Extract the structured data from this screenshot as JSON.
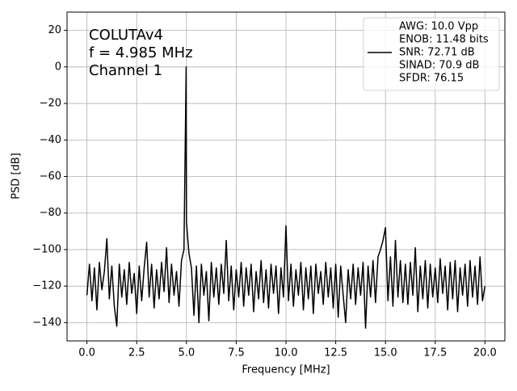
{
  "chart_data": {
    "type": "line",
    "xlabel": "Frequency [MHz]",
    "ylabel": "PSD [dB]",
    "annotation": [
      "COLUTAv4",
      "f = 4.985 MHz",
      "Channel 1"
    ],
    "xlim": [
      -1,
      21
    ],
    "ylim": [
      -150,
      30
    ],
    "xticks": [
      {
        "value": 0,
        "label": "0.0"
      },
      {
        "value": 2.5,
        "label": "2.5"
      },
      {
        "value": 5,
        "label": "5.0"
      },
      {
        "value": 7.5,
        "label": "7.5"
      },
      {
        "value": 10,
        "label": "10.0"
      },
      {
        "value": 12.5,
        "label": "12.5"
      },
      {
        "value": 15,
        "label": "15.0"
      },
      {
        "value": 17.5,
        "label": "17.5"
      },
      {
        "value": 20,
        "label": "20.0"
      }
    ],
    "yticks": [
      {
        "value": -140,
        "label": "−140"
      },
      {
        "value": -120,
        "label": "−120"
      },
      {
        "value": -100,
        "label": "−100"
      },
      {
        "value": -80,
        "label": "−80"
      },
      {
        "value": -60,
        "label": "−60"
      },
      {
        "value": -40,
        "label": "−40"
      },
      {
        "value": -20,
        "label": "−20"
      },
      0,
      20
    ],
    "grid": true,
    "legend": "upper right",
    "x": [
      0,
      0.125,
      0.25,
      0.375,
      0.5,
      0.625,
      0.75,
      0.875,
      1,
      1.125,
      1.25,
      1.375,
      1.5,
      1.625,
      1.75,
      1.875,
      2,
      2.125,
      2.25,
      2.375,
      2.5,
      2.625,
      2.75,
      2.875,
      3,
      3.125,
      3.25,
      3.375,
      3.5,
      3.625,
      3.75,
      3.875,
      4,
      4.125,
      4.25,
      4.375,
      4.5,
      4.625,
      4.75,
      4.875,
      4.985,
      5,
      5.125,
      5.25,
      5.375,
      5.5,
      5.625,
      5.75,
      5.875,
      6,
      6.125,
      6.25,
      6.375,
      6.5,
      6.625,
      6.75,
      6.875,
      7,
      7.125,
      7.25,
      7.375,
      7.5,
      7.625,
      7.75,
      7.875,
      8,
      8.125,
      8.25,
      8.375,
      8.5,
      8.625,
      8.75,
      8.875,
      9,
      9.125,
      9.25,
      9.375,
      9.5,
      9.625,
      9.75,
      9.875,
      10,
      10.125,
      10.25,
      10.375,
      10.5,
      10.625,
      10.75,
      10.875,
      11,
      11.125,
      11.25,
      11.375,
      11.5,
      11.625,
      11.75,
      11.875,
      12,
      12.125,
      12.25,
      12.375,
      12.5,
      12.625,
      12.75,
      12.875,
      13,
      13.125,
      13.25,
      13.375,
      13.5,
      13.625,
      13.75,
      13.875,
      14,
      14.125,
      14.25,
      14.375,
      14.5,
      14.625,
      14.75,
      14.875,
      15,
      15.125,
      15.25,
      15.375,
      15.5,
      15.625,
      15.75,
      15.875,
      16,
      16.125,
      16.25,
      16.375,
      16.5,
      16.625,
      16.75,
      16.875,
      17,
      17.125,
      17.25,
      17.375,
      17.5,
      17.625,
      17.75,
      17.875,
      18,
      18.125,
      18.25,
      18.375,
      18.5,
      18.625,
      18.75,
      18.875,
      19,
      19.125,
      19.25,
      19.375,
      19.5,
      19.625,
      19.75,
      19.875,
      20
    ],
    "series": [
      {
        "name": [
          "AWG: 10.0 Vpp",
          "ENOB: 11.48 bits",
          "SNR: 72.71 dB",
          "SINAD: 70.9 dB",
          "SFDR: 76.15"
        ],
        "color": "#000000",
        "values": [
          -125,
          -108,
          -128,
          -110,
          -133,
          -107,
          -122,
          -112,
          -94,
          -127,
          -109,
          -131,
          -142,
          -108,
          -126,
          -111,
          -130,
          -107,
          -124,
          -113,
          -135,
          -109,
          -128,
          -110,
          -96,
          -126,
          -108,
          -132,
          -111,
          -127,
          -107,
          -123,
          -99,
          -129,
          -108,
          -125,
          -112,
          -131,
          -106,
          -100,
          0,
          -85,
          -102,
          -110,
          -136,
          -109,
          -140,
          -108,
          -125,
          -112,
          -139,
          -107,
          -126,
          -110,
          -130,
          -108,
          -124,
          -95,
          -128,
          -109,
          -133,
          -111,
          -126,
          -107,
          -131,
          -110,
          -125,
          -108,
          -134,
          -112,
          -127,
          -106,
          -129,
          -111,
          -132,
          -108,
          -124,
          -109,
          -135,
          -110,
          -126,
          -87,
          -128,
          -108,
          -131,
          -111,
          -125,
          -107,
          -133,
          -110,
          -127,
          -109,
          -135,
          -108,
          -124,
          -112,
          -130,
          -107,
          -126,
          -110,
          -132,
          -108,
          -137,
          -109,
          -125,
          -140,
          -111,
          -127,
          -108,
          -130,
          -110,
          -125,
          -107,
          -143,
          -109,
          -126,
          -106,
          -129,
          -104,
          -100,
          -95,
          -88,
          -128,
          -104,
          -131,
          -95,
          -126,
          -106,
          -129,
          -108,
          -130,
          -107,
          -125,
          -99,
          -134,
          -109,
          -127,
          -106,
          -132,
          -108,
          -126,
          -110,
          -129,
          -105,
          -124,
          -109,
          -133,
          -107,
          -127,
          -106,
          -134,
          -110,
          -125,
          -108,
          -131,
          -106,
          -126,
          -109,
          -130,
          -104,
          -128,
          -120
        ]
      }
    ]
  }
}
